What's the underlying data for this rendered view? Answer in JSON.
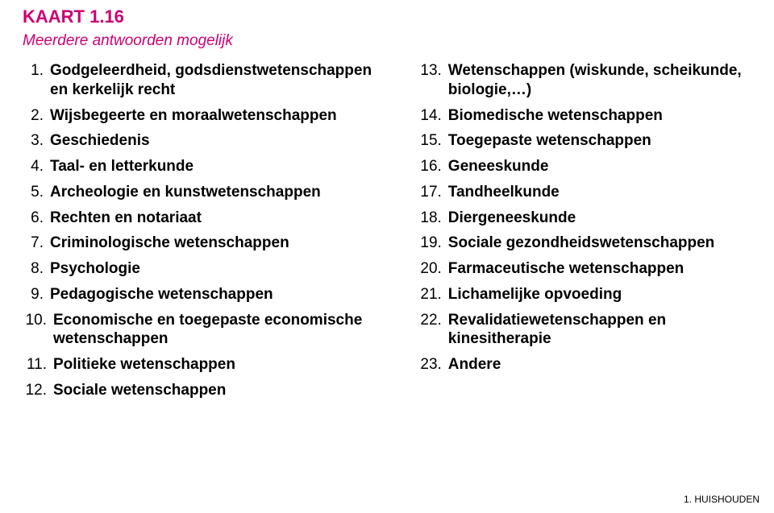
{
  "header": {
    "kaart": "KAART 1.16",
    "subtitle": "Meerdere antwoorden mogelijk"
  },
  "left_items": [
    {
      "n": "1.",
      "t": "Godgeleerdheid, godsdienstwetenschappen en kerkelijk recht"
    },
    {
      "n": "2.",
      "t": "Wijsbegeerte en moraalwetenschappen"
    },
    {
      "n": "3.",
      "t": "Geschiedenis"
    },
    {
      "n": "4.",
      "t": "Taal- en letterkunde"
    },
    {
      "n": "5.",
      "t": "Archeologie en kunstwetenschappen"
    },
    {
      "n": "6.",
      "t": "Rechten en notariaat"
    },
    {
      "n": "7.",
      "t": "Criminologische wetenschappen"
    },
    {
      "n": "8.",
      "t": "Psychologie"
    },
    {
      "n": "9.",
      "t": "Pedagogische wetenschappen"
    },
    {
      "n": "10.",
      "t": "Economische en toegepaste economische wetenschappen"
    },
    {
      "n": "11.",
      "t": "Politieke wetenschappen"
    },
    {
      "n": "12.",
      "t": "Sociale wetenschappen"
    }
  ],
  "right_items": [
    {
      "n": "13.",
      "t": "Wetenschappen (wiskunde, scheikunde, biologie,…)"
    },
    {
      "n": "14.",
      "t": "Biomedische wetenschappen"
    },
    {
      "n": "15.",
      "t": "Toegepaste wetenschappen"
    },
    {
      "n": "16.",
      "t": "Geneeskunde"
    },
    {
      "n": "17.",
      "t": "Tandheelkunde"
    },
    {
      "n": "18.",
      "t": "Diergeneeskunde"
    },
    {
      "n": "19.",
      "t": "Sociale gezondheidswetenschappen"
    },
    {
      "n": "20.",
      "t": "Farmaceutische wetenschappen"
    },
    {
      "n": "21.",
      "t": "Lichamelijke opvoeding"
    },
    {
      "n": "22.",
      "t": "Revalidatiewetenschappen en kinesitherapie"
    },
    {
      "n": "23.",
      "t": "Andere"
    }
  ],
  "footer": "1. HUISHOUDEN",
  "colors": {
    "accent": "#cc0073",
    "text": "#000000",
    "background": "#ffffff"
  },
  "typography": {
    "title_fontsize": 22,
    "subtitle_fontsize": 19,
    "item_fontsize": 19,
    "footer_fontsize": 12,
    "title_weight": "bold",
    "subtitle_style": "italic",
    "item_weight": "bold",
    "number_weight": "normal"
  }
}
